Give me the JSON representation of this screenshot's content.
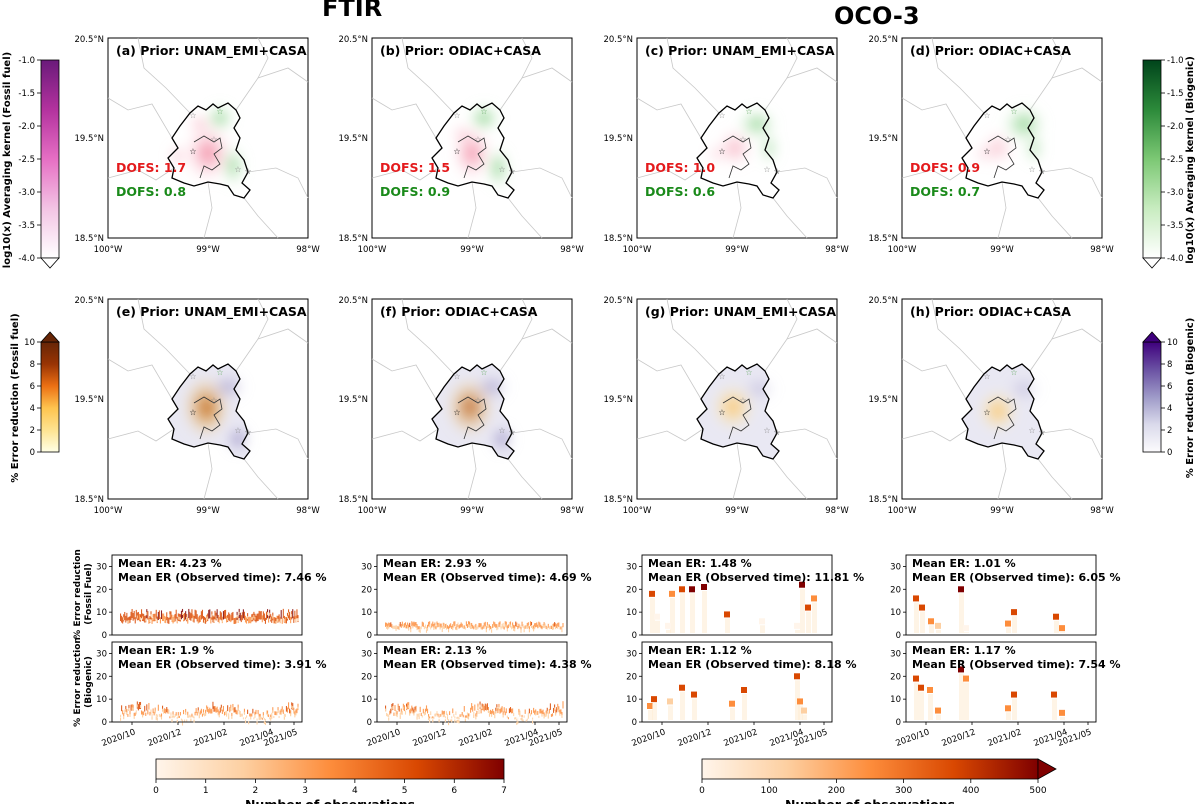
{
  "header": {
    "left_title": "FTIR",
    "right_title": "OCO-3"
  },
  "map_axes": {
    "lat_ticks": [
      "20.5°N",
      "19.5°N",
      "18.5°N"
    ],
    "lon_ticks": [
      "100°W",
      "99°W",
      "98°W"
    ],
    "lon_ticks_h": [
      "100°W",
      "99°W",
      "98°W"
    ]
  },
  "top_row": {
    "panels": [
      {
        "label": "(a) Prior: UNAM_EMI+CASA",
        "dofs_ff": "DOFS: 1.7",
        "dofs_bio": "DOFS: 0.8"
      },
      {
        "label": "(b) Prior: ODIAC+CASA",
        "dofs_ff": "DOFS: 1.5",
        "dofs_bio": "DOFS: 0.9"
      },
      {
        "label": "(c) Prior: UNAM_EMI+CASA",
        "dofs_ff": "DOFS: 1.0",
        "dofs_bio": "DOFS: 0.6"
      },
      {
        "label": "(d) Prior: ODIAC+CASA",
        "dofs_ff": "DOFS: 0.9",
        "dofs_bio": "DOFS: 0.7"
      }
    ],
    "colorbar_left": {
      "label": "log10(x) Averaging kernel (Fossil fuel)",
      "ticks": [
        "-1.0",
        "-1.5",
        "-2.0",
        "-2.5",
        "-3.0",
        "-3.5",
        "-4.0"
      ]
    },
    "colorbar_right": {
      "label": "log10(x) Averaging kernel (Biogenic)",
      "ticks": [
        "-1.0",
        "-1.5",
        "-2.0",
        "-2.5",
        "-3.0",
        "-3.5",
        "-4.0"
      ]
    }
  },
  "mid_row": {
    "panels": [
      {
        "label": "(e) Prior: UNAM_EMI+CASA"
      },
      {
        "label": "(f) Prior: ODIAC+CASA"
      },
      {
        "label": "(g) Prior: UNAM_EMI+CASA"
      },
      {
        "label": "(h) Prior: ODIAC+CASA"
      }
    ],
    "colorbar_left": {
      "label": "% Error reduction (Fossil fuel)",
      "ticks": [
        "10",
        "8",
        "6",
        "4",
        "2",
        "0"
      ]
    },
    "colorbar_right": {
      "label": "% Error reduction (Biogenic)",
      "ticks": [
        "10",
        "8",
        "6",
        "4",
        "2",
        "0"
      ]
    }
  },
  "ts": {
    "ylabel_ff": "% Error reduction\n(Fossil Fuel)",
    "ylabel_ff_l1": "% Error reduction",
    "ylabel_ff_l2": "(Fossil Fuel)",
    "ylabel_bio_l1": "% Error reduction",
    "ylabel_bio_l2": "(Biogenic)",
    "yticks": [
      "30",
      "20",
      "10",
      "0"
    ],
    "xticks": [
      "2020/10",
      "2020/12",
      "2021/02",
      "2021/04",
      "2021/05"
    ],
    "panels": [
      {
        "er": "Mean ER: 4.23 %",
        "er_obs": "Mean ER (Observed time): 7.46 %"
      },
      {
        "er": "Mean ER: 2.93 %",
        "er_obs": "Mean ER (Observed time): 4.69 %"
      },
      {
        "er": "Mean ER: 1.48 %",
        "er_obs": "Mean ER (Observed time): 11.81 %"
      },
      {
        "er": "Mean ER: 1.01 %",
        "er_obs": "Mean ER (Observed time): 6.05 %"
      },
      {
        "er": "Mean ER: 1.9 %",
        "er_obs": "Mean ER (Observed time): 3.91 %"
      },
      {
        "er": "Mean ER: 2.13 %",
        "er_obs": "Mean ER (Observed time): 4.38 %"
      },
      {
        "er": "Mean ER: 1.12 %",
        "er_obs": "Mean ER (Observed time): 8.18 %"
      },
      {
        "er": "Mean ER: 1.17 %",
        "er_obs": "Mean ER (Observed time): 7.54 %"
      }
    ]
  },
  "bottom_colorbars": {
    "left": {
      "label": "Number of observations",
      "ticks": [
        "0",
        "1",
        "2",
        "3",
        "4",
        "5",
        "6",
        "7"
      ]
    },
    "right": {
      "label": "Number of observations",
      "ticks": [
        "0",
        "100",
        "200",
        "300",
        "400",
        "500"
      ]
    }
  },
  "colors": {
    "dofs_ff": "#e41a1c",
    "dofs_bio": "#1a8a1a",
    "fossil_cmap": [
      "#ffffff",
      "#f3c4e4",
      "#e66fc4",
      "#b3329e",
      "#6a1a7a"
    ],
    "bio_cmap": [
      "#ffffff",
      "#c8ecc0",
      "#7cc874",
      "#2c8a3a",
      "#00441b"
    ],
    "er_ff_cmap": [
      "#ffffe5",
      "#fee391",
      "#fec44f",
      "#ec7014",
      "#993404",
      "#662506"
    ],
    "er_bio_cmap": [
      "#fcfbfd",
      "#dadaeb",
      "#9e9ac8",
      "#6a51a3",
      "#3f007d"
    ],
    "obs_cmap": [
      "#fff5eb",
      "#fdd0a2",
      "#fd8d3c",
      "#d94801",
      "#7f0000"
    ]
  },
  "chart_data": [
    {
      "type": "heatmap",
      "panel": "a",
      "title": "(a) Prior: UNAM_EMI+CASA",
      "dofs_fossil": 1.7,
      "dofs_biogenic": 0.8,
      "xlim": [
        -100,
        -98
      ],
      "ylim": [
        18.5,
        20.5
      ]
    },
    {
      "type": "heatmap",
      "panel": "b",
      "title": "(b) Prior: ODIAC+CASA",
      "dofs_fossil": 1.5,
      "dofs_biogenic": 0.9,
      "xlim": [
        -100,
        -98
      ],
      "ylim": [
        18.5,
        20.5
      ]
    },
    {
      "type": "heatmap",
      "panel": "c",
      "title": "(c) Prior: UNAM_EMI+CASA",
      "dofs_fossil": 1.0,
      "dofs_biogenic": 0.6,
      "xlim": [
        -100,
        -98
      ],
      "ylim": [
        18.5,
        20.5
      ]
    },
    {
      "type": "heatmap",
      "panel": "d",
      "title": "(d) Prior: ODIAC+CASA",
      "dofs_fossil": 0.9,
      "dofs_biogenic": 0.7,
      "xlim": [
        -100,
        -98
      ],
      "ylim": [
        18.5,
        20.5
      ]
    },
    {
      "type": "heatmap",
      "panel": "e",
      "title": "(e) Prior: UNAM_EMI+CASA",
      "xlim": [
        -100,
        -98
      ],
      "ylim": [
        18.5,
        20.5
      ],
      "clim": [
        0,
        10
      ]
    },
    {
      "type": "heatmap",
      "panel": "f",
      "title": "(f) Prior: ODIAC+CASA",
      "xlim": [
        -100,
        -98
      ],
      "ylim": [
        18.5,
        20.5
      ],
      "clim": [
        0,
        10
      ]
    },
    {
      "type": "heatmap",
      "panel": "g",
      "title": "(g) Prior: UNAM_EMI+CASA",
      "xlim": [
        -100,
        -98
      ],
      "ylim": [
        18.5,
        20.5
      ],
      "clim": [
        0,
        10
      ]
    },
    {
      "type": "heatmap",
      "panel": "h",
      "title": "(h) Prior: ODIAC+CASA",
      "xlim": [
        -100,
        -98
      ],
      "ylim": [
        18.5,
        20.5
      ],
      "clim": [
        0,
        10
      ]
    },
    {
      "type": "scatter",
      "panel": "ts-ftir-unam",
      "ylim": [
        0,
        35
      ],
      "mean_er_fossil": 4.23,
      "mean_er_fossil_observed": 7.46,
      "mean_er_biogenic": 1.9,
      "mean_er_biogenic_observed": 3.91
    },
    {
      "type": "scatter",
      "panel": "ts-ftir-odiac",
      "ylim": [
        0,
        35
      ],
      "mean_er_fossil": 2.93,
      "mean_er_fossil_observed": 4.69,
      "mean_er_biogenic": 2.13,
      "mean_er_biogenic_observed": 4.38
    },
    {
      "type": "scatter",
      "panel": "ts-oco3-unam",
      "ylim": [
        0,
        35
      ],
      "mean_er_fossil": 1.48,
      "mean_er_fossil_observed": 11.81,
      "mean_er_biogenic": 1.12,
      "mean_er_biogenic_observed": 8.18
    },
    {
      "type": "scatter",
      "panel": "ts-oco3-odiac",
      "ylim": [
        0,
        35
      ],
      "mean_er_fossil": 1.01,
      "mean_er_fossil_observed": 6.05,
      "mean_er_biogenic": 1.17,
      "mean_er_biogenic_observed": 7.54
    }
  ]
}
